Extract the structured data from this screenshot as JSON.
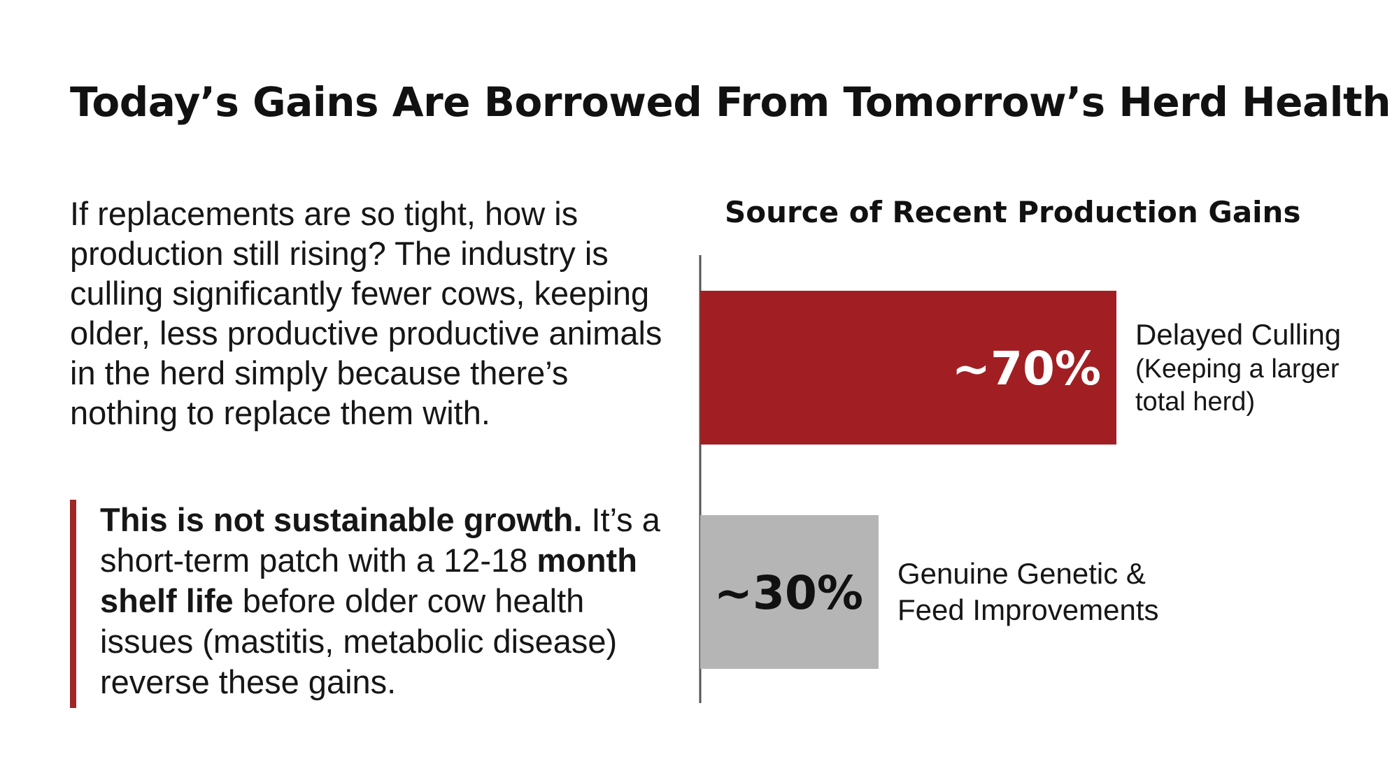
{
  "title": "Today’s Gains Are Borrowed From Tomorrow’s Herd Health",
  "body_paragraph": "If replacements are so tight, how is production still rising? The industry is culling significantly fewer cows, keeping older, less productive productive animals in the herd simply because there’s nothing to replace them with.",
  "callout": {
    "bold_lead": "This is not sustainable growth.",
    "text_1": " It’s a short-term patch with a 12-18 ",
    "bold_mid": "month shelf life",
    "text_2": " before older cow health issues (mastitis, metabolic disease) reverse these gains.",
    "bar_color": "#9e2727"
  },
  "chart_data": {
    "type": "bar",
    "orientation": "horizontal",
    "title": "Source of Recent Production Gains",
    "categories": [
      [
        "Delayed Culling",
        "(Keeping a larger",
        "total herd)"
      ],
      [
        "Genuine Genetic &",
        "Feed Improvements"
      ]
    ],
    "values": [
      70,
      30
    ],
    "value_labels": [
      "~70%",
      "~30%"
    ],
    "colors": [
      "#a11f22",
      "#b5b5b5"
    ],
    "label_colors": [
      "#ffffff",
      "#111111"
    ],
    "xlim": [
      0,
      100
    ],
    "grid": false,
    "axis_color": "#555555"
  }
}
